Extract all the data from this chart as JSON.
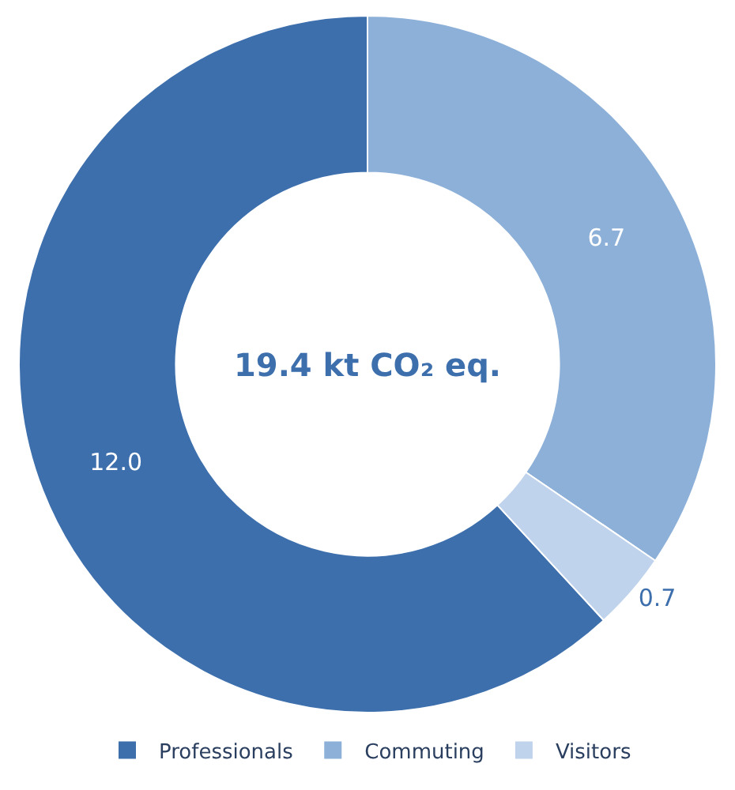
{
  "chart_data": {
    "type": "donut",
    "categories": [
      "Professionals",
      "Commuting",
      "Visitors"
    ],
    "values": [
      12.0,
      6.7,
      0.7
    ],
    "colors": [
      "#3d6fad",
      "#8db0d8",
      "#c0d3ec"
    ],
    "value_labels": [
      "12.0",
      "6.7",
      "0.7"
    ],
    "annotations": [
      "19.4 kt CO₂ eq."
    ],
    "legend": "bottom"
  }
}
